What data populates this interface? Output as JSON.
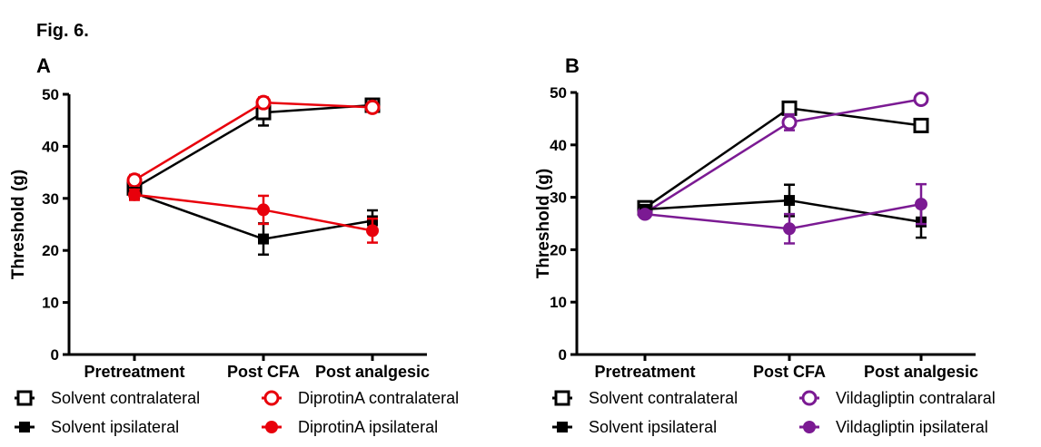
{
  "figure_label": "Fig. 6.",
  "chart_data": [
    {
      "type": "line",
      "panel": "A",
      "categories": [
        "Pretreatment",
        "Post CFA",
        "Post analgesic"
      ],
      "ylabel": "Threshold (g)",
      "ylim": [
        0,
        50
      ],
      "yticks": [
        "0",
        "10",
        "20",
        "30",
        "40",
        "50"
      ],
      "grid": false,
      "series": [
        {
          "name": "Solvent contralateral",
          "color": "#000000",
          "marker": "open-square",
          "values": [
            32,
            46.5,
            47.9
          ],
          "errors": [
            1.5,
            2.5,
            0.8
          ]
        },
        {
          "name": "DiprotinA contralateral",
          "color": "#e8000b",
          "marker": "open-circle",
          "values": [
            33.5,
            48.4,
            47.5
          ],
          "errors": [
            1,
            1,
            0.6
          ]
        },
        {
          "name": "Solvent ipsilateral",
          "color": "#000000",
          "marker": "filled-square",
          "values": [
            31,
            22.2,
            25.7
          ],
          "errors": [
            1,
            3,
            2
          ]
        },
        {
          "name": "DiprotinA ipsilateral",
          "color": "#e8000b",
          "marker": "filled-circle",
          "values": [
            30.7,
            27.8,
            23.8
          ],
          "errors": [
            1,
            2.7,
            2.3
          ]
        }
      ],
      "legend": [
        "Solvent contralateral",
        "DiprotinA contralateral",
        "Solvent ipsilateral",
        "DiprotinA ipsilateral"
      ]
    },
    {
      "type": "line",
      "panel": "B",
      "categories": [
        "Pretreatment",
        "Post CFA",
        "Post analgesic"
      ],
      "ylabel": "Threshold (g)",
      "ylim": [
        0,
        50
      ],
      "yticks": [
        "0",
        "10",
        "20",
        "30",
        "40",
        "50"
      ],
      "grid": false,
      "series": [
        {
          "name": "Solvent contralateral",
          "color": "#000000",
          "marker": "open-square",
          "values": [
            28,
            47,
            43.7
          ],
          "errors": [
            0.6,
            0.8,
            1.2
          ]
        },
        {
          "name": "Vildagliptin contralaral",
          "color": "#7b1a93",
          "marker": "open-circle",
          "values": [
            27,
            44.3,
            48.7
          ],
          "errors": [
            0.6,
            1.5,
            0.8
          ]
        },
        {
          "name": "Solvent ipsilateral",
          "color": "#000000",
          "marker": "filled-square",
          "values": [
            27.7,
            29.4,
            25.3
          ],
          "errors": [
            0.6,
            3,
            3
          ]
        },
        {
          "name": "Vildagliptin ipsilateral",
          "color": "#7b1a93",
          "marker": "filled-circle",
          "values": [
            26.8,
            24,
            28.7
          ],
          "errors": [
            0.6,
            2.8,
            3.8
          ]
        }
      ],
      "legend": [
        "Solvent contralateral",
        "Vildagliptin contralaral",
        "Solvent ipsilateral",
        "Vildagliptin ipsilateral"
      ]
    }
  ]
}
